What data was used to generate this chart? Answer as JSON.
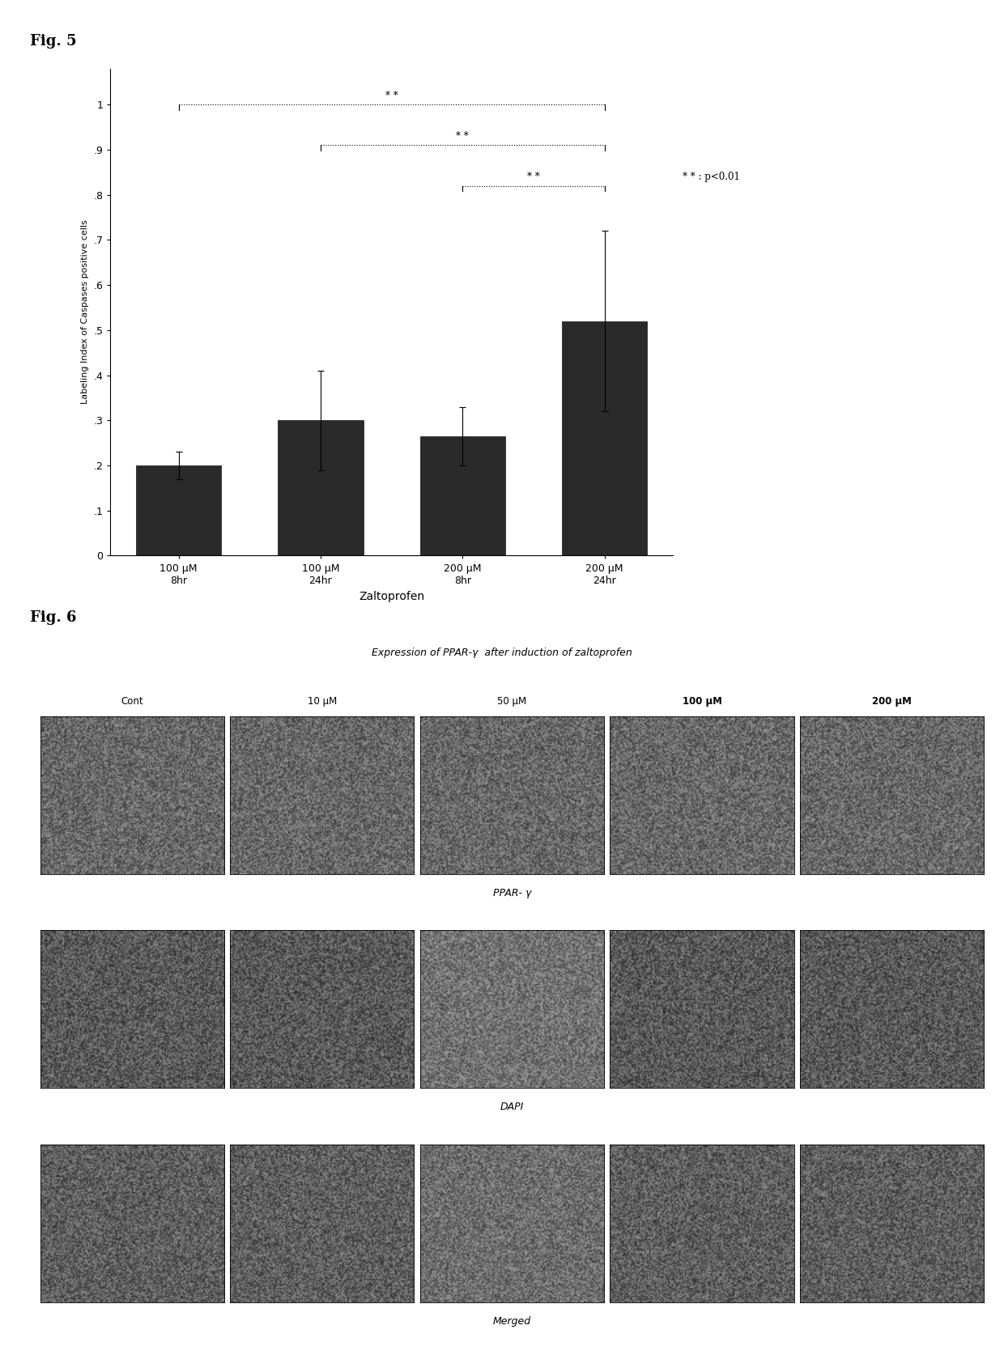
{
  "fig5_label": "Fig. 5",
  "fig6_label": "Fig. 6",
  "bar_values": [
    0.2,
    0.3,
    0.265,
    0.52
  ],
  "bar_errors": [
    0.03,
    0.11,
    0.065,
    0.2
  ],
  "bar_labels": [
    "100 μM\n8hr",
    "100 μM\n24hr",
    "200 μM\n8hr",
    "200 μM\n24hr"
  ],
  "bar_color": "#2a2a2a",
  "xlabel": "Zaltoprofen",
  "ylabel": "Labeling Index of Caspases positive cells",
  "yticks": [
    0,
    0.1,
    0.2,
    0.3,
    0.4,
    0.5,
    0.6,
    0.7,
    0.8,
    0.9,
    1
  ],
  "ytick_labels": [
    "0",
    ".1",
    ".2",
    ".3",
    ".4",
    ".5",
    ".6",
    ".7",
    ".8",
    ".9",
    "1"
  ],
  "ylim": [
    0,
    1.08
  ],
  "sig_annotation": "* * : p<0.01",
  "sig_label": "* *",
  "fig6_title": "Expression of PPAR-γ  after induction of zaltoprofen",
  "fig6_col_labels": [
    "Cont",
    "10 μM",
    "50 μM",
    "100 μM",
    "200 μM"
  ],
  "fig6_col_bold": [
    false,
    false,
    false,
    true,
    true
  ],
  "fig6_row_labels": [
    "PPAR- γ",
    "DAPI",
    "Merged"
  ],
  "noise_mean_row0": [
    105,
    105,
    105,
    105,
    105
  ],
  "noise_mean_row1": [
    90,
    90,
    115,
    90,
    90
  ],
  "noise_mean_row2": [
    95,
    95,
    110,
    95,
    95
  ],
  "noise_seed": 42
}
